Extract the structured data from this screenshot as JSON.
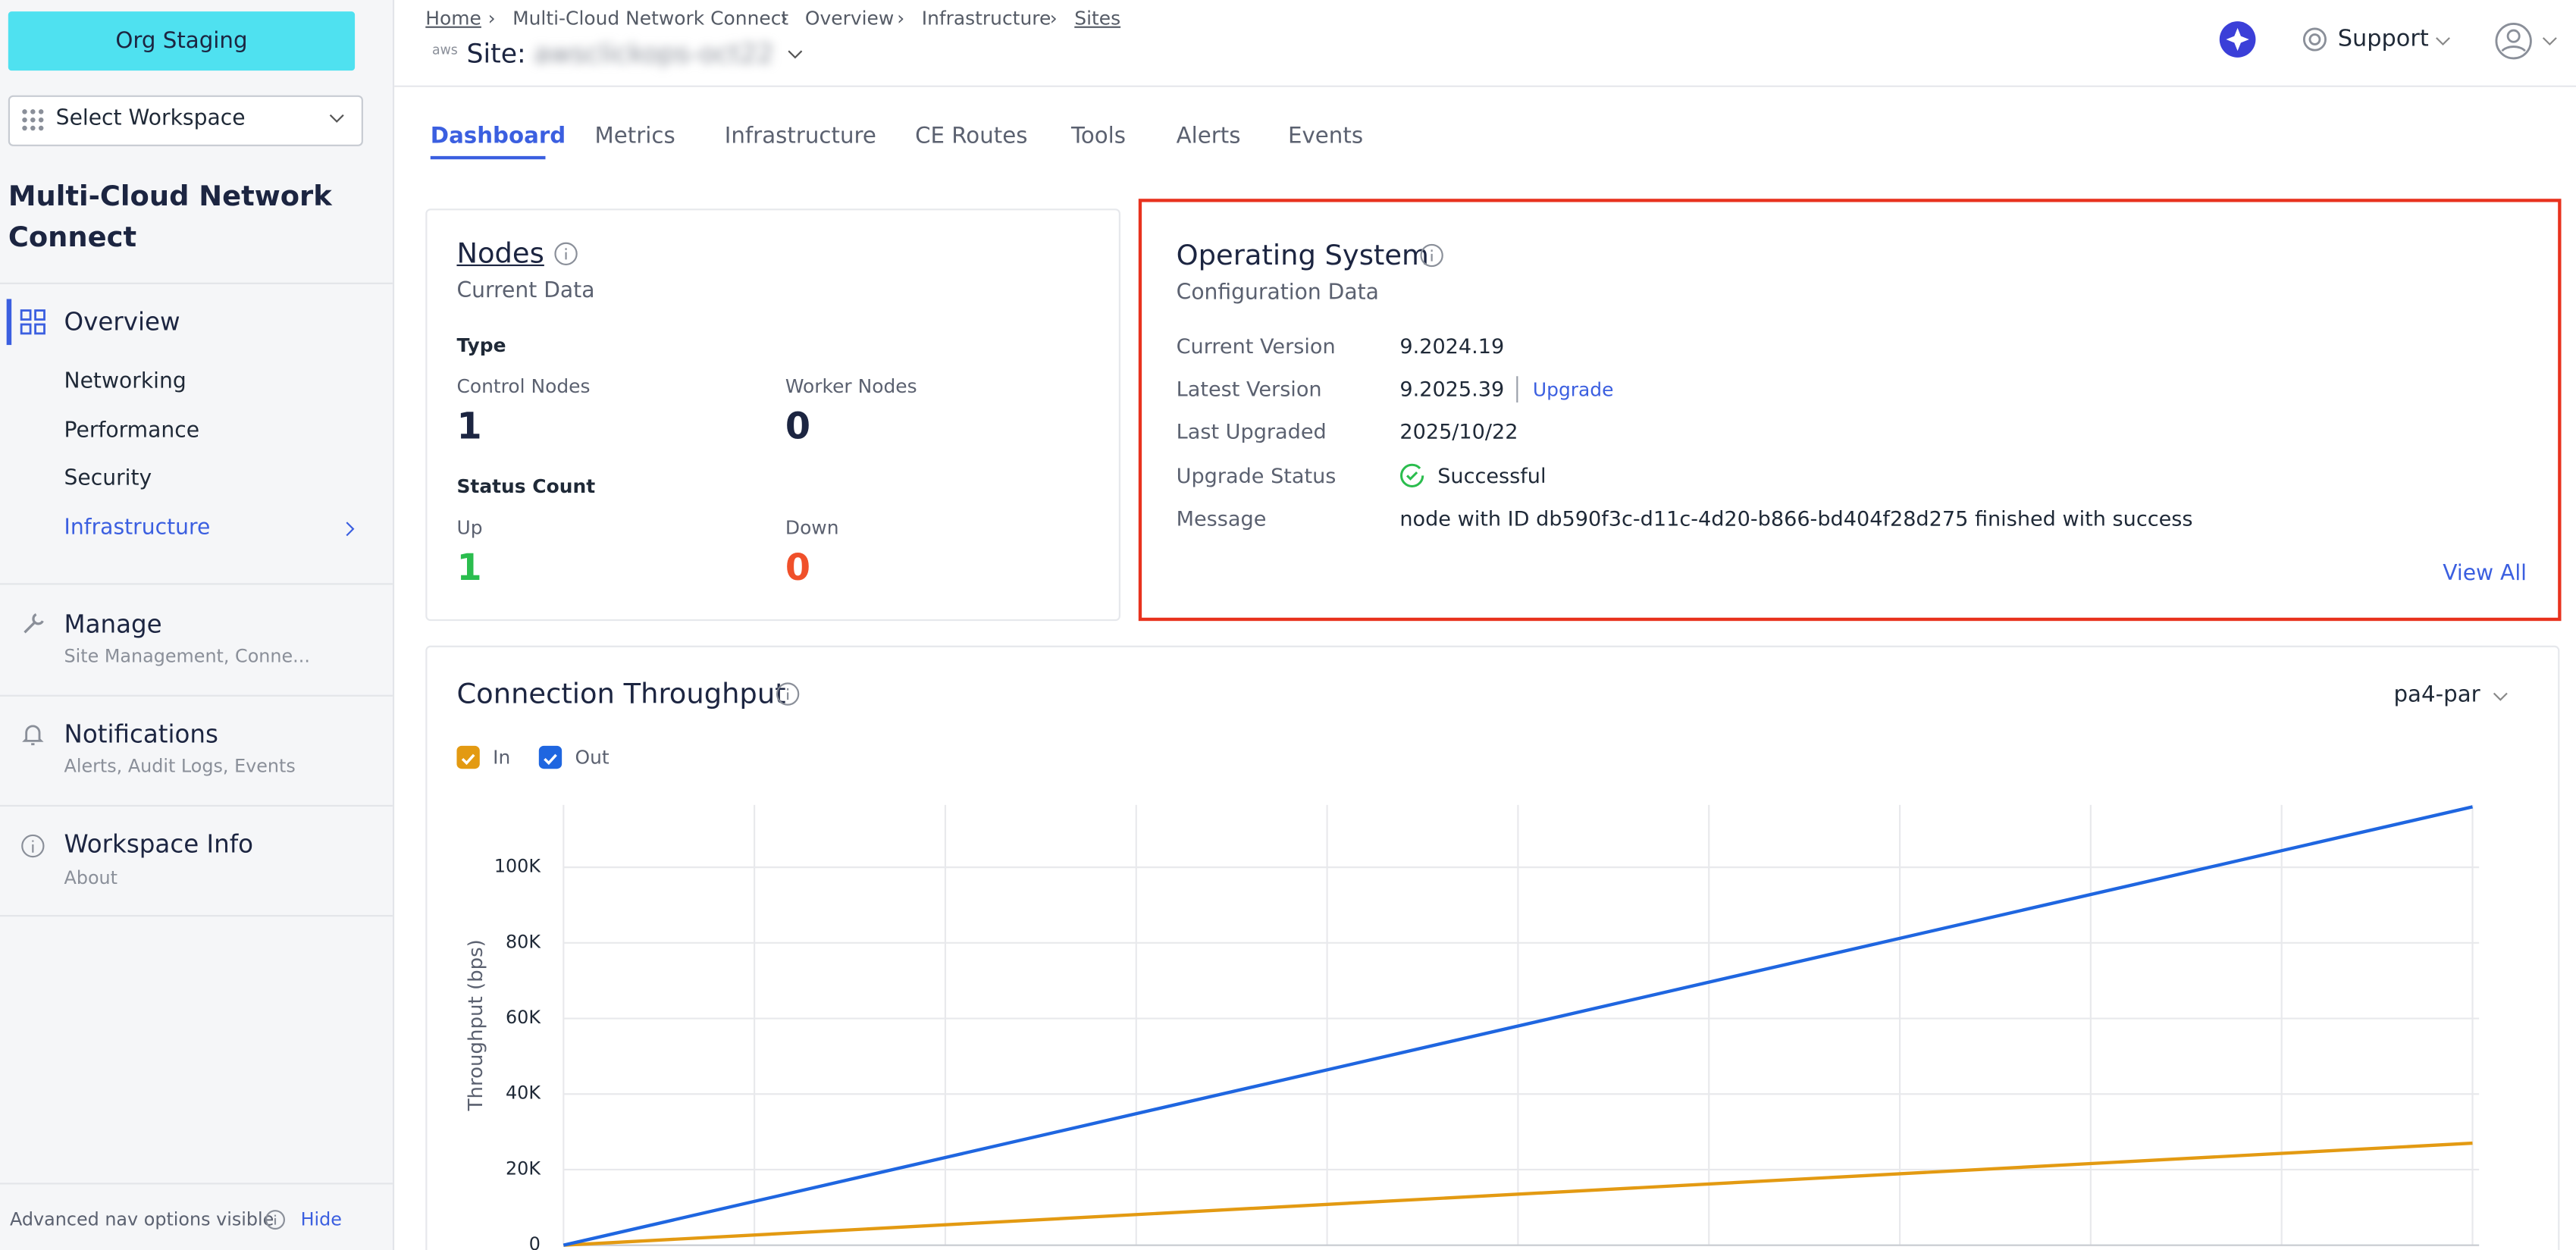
{
  "sidebar": {
    "org_button": "Org Staging",
    "workspace_select": "Select Workspace",
    "app_title": "Multi-Cloud Network Connect",
    "overview": "Overview",
    "overview_items": [
      "Networking",
      "Performance",
      "Security",
      "Infrastructure"
    ],
    "sections": [
      {
        "label": "Manage",
        "sub": "Site Management, Conne..."
      },
      {
        "label": "Notifications",
        "sub": "Alerts, Audit Logs, Events"
      },
      {
        "label": "Workspace Info",
        "sub": "About"
      }
    ],
    "footer": {
      "text": "Advanced nav options visible",
      "action": "Hide"
    }
  },
  "header": {
    "breadcrumb": [
      "Home",
      "Multi-Cloud Network Connect",
      "Overview",
      "Infrastructure",
      "Sites"
    ],
    "provider": "aws",
    "site_prefix": "Site:",
    "site_name": "awsclickops-oct22",
    "support": "Support"
  },
  "tabs": [
    "Dashboard",
    "Metrics",
    "Infrastructure",
    "CE Routes",
    "Tools",
    "Alerts",
    "Events"
  ],
  "nodes_card": {
    "title": "Nodes",
    "subtitle": "Current Data",
    "type_heading": "Type",
    "control_label": "Control Nodes",
    "control_value": 1,
    "worker_label": "Worker Nodes",
    "worker_value": 0,
    "status_heading": "Status Count",
    "up_label": "Up",
    "up_value": 1,
    "down_label": "Down",
    "down_value": 0
  },
  "os_card": {
    "title": "Operating System",
    "subtitle": "Configuration Data",
    "rows": [
      [
        "Current Version",
        "9.2024.19"
      ],
      [
        "Latest Version",
        "9.2025.39"
      ],
      [
        "Last Upgraded",
        "2025/10/22"
      ],
      [
        "Upgrade Status",
        "Successful"
      ],
      [
        "Message",
        "node with ID db590f3c-d11c-4d20-b866-bd404f28d275 finished with success"
      ]
    ],
    "upgrade_link": "Upgrade",
    "view_all": "View All"
  },
  "throughput_card": {
    "region": "pa4-par"
  },
  "chart_data": {
    "type": "line",
    "title": "Connection Throughput",
    "y_label": "Throughput (bps)",
    "categories": [
      null,
      null
    ],
    "series": [
      {
        "name": "In",
        "color": "#e39a12",
        "values": [
          0,
          27000
        ]
      },
      {
        "name": "Out",
        "color": "#1f66e0",
        "values": [
          0,
          116000
        ]
      }
    ],
    "ylim": [
      0,
      116500
    ],
    "yticks": [
      0,
      {
        "value": 20000,
        "label": "20K"
      },
      {
        "value": 40000,
        "label": "40K"
      },
      {
        "value": 60000,
        "label": "60K"
      },
      {
        "value": 80000,
        "label": "80K"
      },
      {
        "value": 100000,
        "label": "100K"
      }
    ],
    "grid": true
  }
}
